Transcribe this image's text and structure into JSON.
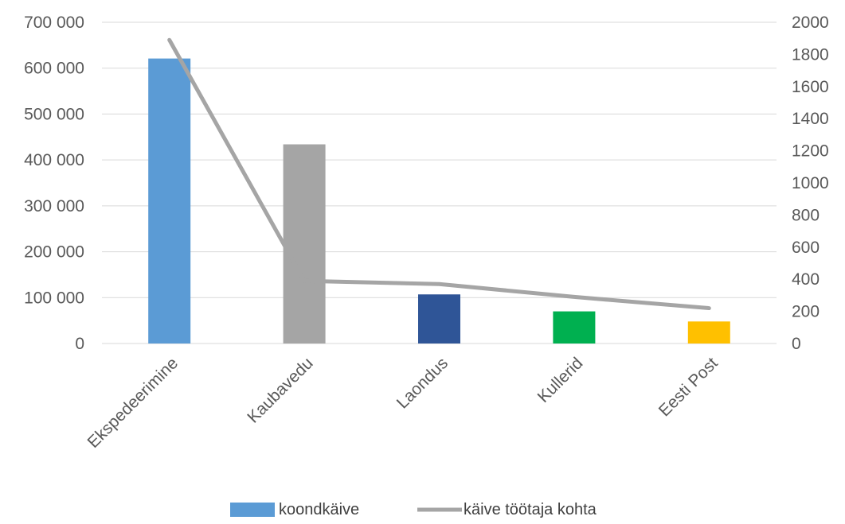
{
  "chart_data": {
    "type": "bar",
    "categories": [
      "Ekspedeerimine",
      "Kaubavedu",
      "Laondus",
      "Kullerid",
      "Eesti Post"
    ],
    "series": [
      {
        "name": "koondkäive",
        "type": "bar",
        "axis": "left",
        "values": [
          621000,
          434000,
          107000,
          70000,
          48000
        ],
        "colors": [
          "#5b9bd5",
          "#a5a5a5",
          "#2f5597",
          "#00b050",
          "#ffc000"
        ]
      },
      {
        "name": "käive töötaja kohta",
        "type": "line",
        "axis": "right",
        "values": [
          1890,
          390,
          370,
          290,
          220
        ],
        "color": "#a5a5a5"
      }
    ],
    "y_left": {
      "ylim": [
        0,
        700000
      ],
      "ticks": [
        0,
        100000,
        200000,
        300000,
        400000,
        500000,
        600000,
        700000
      ],
      "tick_labels": [
        "0",
        "100 000",
        "200 000",
        "300 000",
        "400 000",
        "500 000",
        "600 000",
        "700 000"
      ]
    },
    "y_right": {
      "ylim": [
        0,
        2000
      ],
      "ticks": [
        0,
        200,
        400,
        600,
        800,
        1000,
        1200,
        1400,
        1600,
        1800,
        2000
      ],
      "tick_labels": [
        "0",
        "200",
        "400",
        "600",
        "800",
        "1000",
        "1200",
        "1400",
        "1600",
        "1800",
        "2000"
      ]
    },
    "grid": true,
    "legend": {
      "position": "bottom",
      "entries": [
        "koondkäive",
        "käive töötaja kohta"
      ]
    },
    "title": "",
    "xlabel": "",
    "ylabel": ""
  }
}
